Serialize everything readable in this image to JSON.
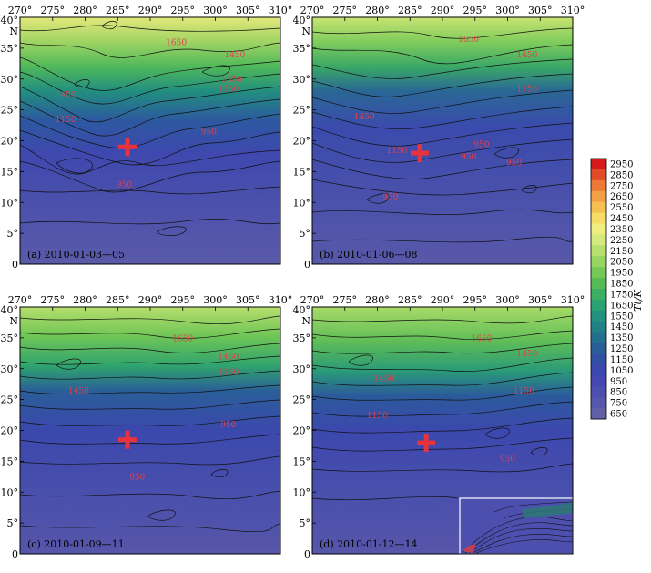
{
  "chart_data": {
    "type": "heatmap",
    "colorbar": {
      "label": "Tt/K",
      "ticks": [
        "2950",
        "2850",
        "2750",
        "2650",
        "2550",
        "2450",
        "2350",
        "2250",
        "2150",
        "2050",
        "1950",
        "1850",
        "1750",
        "1650",
        "1550",
        "1450",
        "1350",
        "1250",
        "1150",
        "1050",
        "950",
        "850",
        "750",
        "650"
      ],
      "colors": [
        "#d7191c",
        "#e24b28",
        "#ec7a36",
        "#f2a044",
        "#f5c050",
        "#f7dd66",
        "#eeee80",
        "#d4ea7e",
        "#b6e06d",
        "#96d55f",
        "#74c856",
        "#56bb55",
        "#3caf62",
        "#2aa372",
        "#22927f",
        "#218186",
        "#246f8e",
        "#2a5e98",
        "#3150a4",
        "#3a47ad",
        "#4448b0",
        "#4d4fae",
        "#5656aa",
        "#6060a8"
      ]
    },
    "x_ticks": [
      "270°",
      "275°",
      "280°",
      "285°",
      "290°",
      "295°",
      "300°",
      "305°",
      "310°"
    ],
    "y_ticks": [
      "40°",
      "35°",
      "30°",
      "25°",
      "20°",
      "15°",
      "10°",
      "5°",
      "0"
    ],
    "y_unit": "N",
    "xlim": [
      270,
      310
    ],
    "ylim": [
      0,
      40
    ],
    "panels": [
      {
        "label": "(a) 2010-01-03—05",
        "marker": {
          "x": 286.5,
          "y": 19
        },
        "contour_labels": [
          {
            "text": "1650",
            "x": 294,
            "y": 35.5
          },
          {
            "text": "1450",
            "x": 303,
            "y": 33.5
          },
          {
            "text": "1350",
            "x": 302.5,
            "y": 29.5
          },
          {
            "text": "1150",
            "x": 302,
            "y": 28
          },
          {
            "text": "1450",
            "x": 277,
            "y": 27
          },
          {
            "text": "1150",
            "x": 277,
            "y": 23
          },
          {
            "text": "950",
            "x": 299,
            "y": 21
          },
          {
            "text": "950",
            "x": 286,
            "y": 12.5
          }
        ]
      },
      {
        "label": "(b) 2010-01-06—08",
        "marker": {
          "x": 286.5,
          "y": 18
        },
        "contour_labels": [
          {
            "text": "1650",
            "x": 294,
            "y": 36
          },
          {
            "text": "1450",
            "x": 303,
            "y": 33.5
          },
          {
            "text": "1150",
            "x": 303,
            "y": 28
          },
          {
            "text": "1450",
            "x": 278,
            "y": 23.5
          },
          {
            "text": "1150",
            "x": 283,
            "y": 18
          },
          {
            "text": "950",
            "x": 296,
            "y": 19
          },
          {
            "text": "950",
            "x": 294,
            "y": 17
          },
          {
            "text": "950",
            "x": 301,
            "y": 16
          },
          {
            "text": "950",
            "x": 282,
            "y": 10.5
          }
        ]
      },
      {
        "label": "(c) 2010-01-09—11",
        "marker": {
          "x": 286.5,
          "y": 18.5
        },
        "contour_labels": [
          {
            "text": "1650",
            "x": 295,
            "y": 34.5
          },
          {
            "text": "1450",
            "x": 302,
            "y": 31.5
          },
          {
            "text": "1150",
            "x": 302,
            "y": 29
          },
          {
            "text": "1450",
            "x": 279,
            "y": 26
          },
          {
            "text": "950",
            "x": 302,
            "y": 20.5
          },
          {
            "text": "950",
            "x": 288,
            "y": 12
          }
        ]
      },
      {
        "label": "(d) 2010-01-12—14",
        "marker": {
          "x": 287.5,
          "y": 18
        },
        "contour_labels": [
          {
            "text": "1650",
            "x": 296,
            "y": 34.5
          },
          {
            "text": "1450",
            "x": 303,
            "y": 32
          },
          {
            "text": "1450",
            "x": 281,
            "y": 28
          },
          {
            "text": "1150",
            "x": 302.5,
            "y": 26
          },
          {
            "text": "1150",
            "x": 280,
            "y": 22
          },
          {
            "text": "950",
            "x": 300,
            "y": 15
          }
        ]
      }
    ]
  }
}
